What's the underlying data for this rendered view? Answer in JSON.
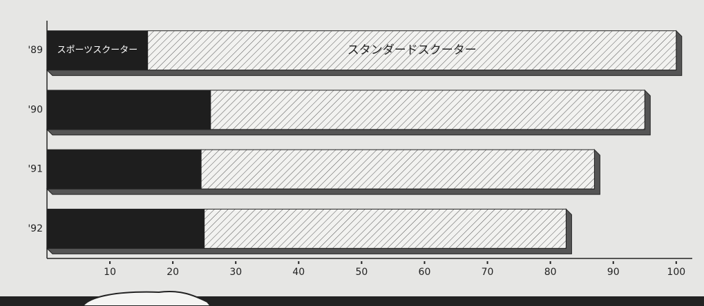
{
  "chart_data": {
    "type": "stacked-barh",
    "categories": [
      "'89",
      "'90",
      "'91",
      "'92"
    ],
    "series": [
      {
        "name": "スポーツスクーター",
        "color": "#1e1e1e",
        "values": [
          16,
          26,
          24.5,
          25
        ]
      },
      {
        "name": "スタンダードスクーター",
        "color": "hatch",
        "values": [
          84,
          69,
          62.5,
          57.5
        ]
      }
    ],
    "xlim": [
      0,
      102
    ],
    "xticks": [
      10,
      20,
      30,
      40,
      50,
      60,
      70,
      80,
      90,
      100
    ]
  }
}
